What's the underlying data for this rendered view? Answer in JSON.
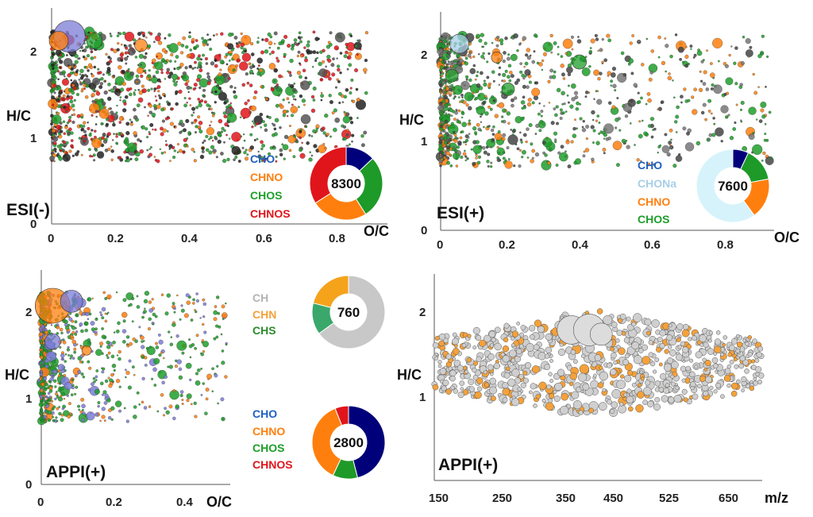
{
  "colors": {
    "CHO": "#1f5fbf",
    "CHO_slice": "#00007a",
    "CHNO": "#ff7f0e",
    "CHOS": "#1e9e2a",
    "CHOS_slice": "#1e9a28",
    "CHNOS": "#e0151b",
    "CHONa": "#a6cfe6",
    "CHONa_slice": "#d6f3fb",
    "CH": "#b3b3b3",
    "CH_slice": "#c8c8c8",
    "CHN": "#f4a13a",
    "CHN_slice": "#f5a31a",
    "CHS": "#2b8a2b",
    "CHS_slice": "#3aa86a"
  },
  "chart_data": [
    {
      "id": "esi-neg",
      "type": "scatter",
      "mode_label": "ESI(-)",
      "xlabel": "O/C",
      "ylabel": "H/C",
      "xlim": [
        0,
        0.9
      ],
      "ylim": [
        0,
        2.4
      ],
      "xticks": [
        "0",
        "0.2",
        "0.4",
        "0.6",
        "0.8"
      ],
      "yticks": [
        "0",
        "1",
        "2"
      ],
      "legend": [
        "CHO",
        "CHNO",
        "CHOS",
        "CHNOS"
      ],
      "donut": {
        "total": "8300",
        "slices": [
          {
            "name": "CHO",
            "value": 0.13
          },
          {
            "name": "CHOS",
            "value": 0.28
          },
          {
            "name": "CHNO",
            "value": 0.25
          },
          {
            "name": "CHNOS",
            "value": 0.34
          }
        ]
      }
    },
    {
      "id": "esi-pos",
      "type": "scatter",
      "mode_label": "ESI(+)",
      "xlabel": "O/C",
      "ylabel": "H/C",
      "xlim": [
        0,
        0.9
      ],
      "ylim": [
        0,
        2.4
      ],
      "xticks": [
        "0",
        "0.2",
        "0.4",
        "0.6",
        "0.8"
      ],
      "yticks": [
        "0",
        "1",
        "2"
      ],
      "legend": [
        "CHO",
        "CHONa",
        "CHNO",
        "CHOS"
      ],
      "donut": {
        "total": "7600",
        "slices": [
          {
            "name": "CHO",
            "value": 0.07
          },
          {
            "name": "CHOS",
            "value": 0.15
          },
          {
            "name": "CHNO",
            "value": 0.18
          },
          {
            "name": "CHONa",
            "value": 0.6
          }
        ]
      }
    },
    {
      "id": "appi-oc",
      "type": "scatter",
      "mode_label": "APPI(+)",
      "xlabel": "O/C",
      "ylabel": "H/C",
      "xlim": [
        0,
        0.5
      ],
      "ylim": [
        0,
        2.4
      ],
      "xticks": [
        "0",
        "0.2",
        "0.4"
      ],
      "yticks": [
        "0",
        "1",
        "2"
      ],
      "legend_top": [
        "CH",
        "CHN",
        "CHS"
      ],
      "donut_top": {
        "total": "760",
        "slices": [
          {
            "name": "CH",
            "value": 0.65
          },
          {
            "name": "CHS",
            "value": 0.14
          },
          {
            "name": "CHN",
            "value": 0.21
          }
        ]
      },
      "legend_bottom": [
        "CHO",
        "CHNO",
        "CHOS",
        "CHNOS"
      ],
      "donut_bottom": {
        "total": "2800",
        "slices": [
          {
            "name": "CHO",
            "value": 0.46
          },
          {
            "name": "CHOS",
            "value": 0.11
          },
          {
            "name": "CHNO",
            "value": 0.37
          },
          {
            "name": "CHNOS",
            "value": 0.06
          }
        ]
      }
    },
    {
      "id": "appi-mz",
      "type": "scatter",
      "mode_label": "APPI(+)",
      "xlabel": "m/z",
      "ylabel": "H/C",
      "xlim": [
        150,
        700
      ],
      "ylim": [
        0,
        2.4
      ],
      "xticks": [
        "150",
        "250",
        "350",
        "450",
        "525",
        "650"
      ],
      "yticks": [
        "1",
        "2"
      ]
    }
  ]
}
